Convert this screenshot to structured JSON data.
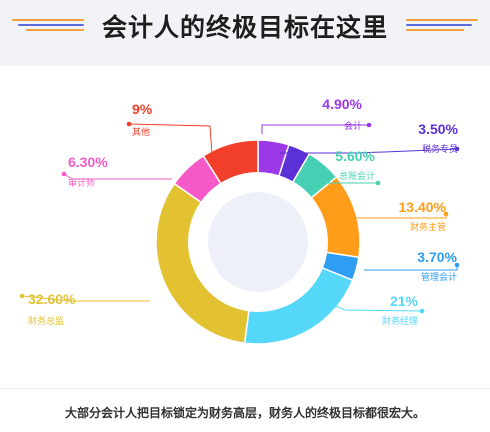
{
  "header": {
    "title": "会计人的终极目标在这里"
  },
  "chart_data": {
    "type": "pie",
    "donut": true,
    "title": "",
    "slices": [
      {
        "label": "会计",
        "value": 4.9,
        "display": "4.90%",
        "color": "#9b38e8"
      },
      {
        "label": "税务专员",
        "value": 3.5,
        "display": "3.50%",
        "color": "#5b30d6"
      },
      {
        "label": "总账会计",
        "value": 5.6,
        "display": "5.60%",
        "color": "#46cfb3"
      },
      {
        "label": "财务主管",
        "value": 13.4,
        "display": "13.40%",
        "color": "#ff9d1a"
      },
      {
        "label": "管理会计",
        "value": 3.7,
        "display": "3.70%",
        "color": "#2e9df2"
      },
      {
        "label": "财务经理",
        "value": 21,
        "display": "21%",
        "color": "#55d7fa"
      },
      {
        "label": "财务总监",
        "value": 32.6,
        "display": "32.60%",
        "color": "#e3c232"
      },
      {
        "label": "审计师",
        "value": 6.3,
        "display": "6.30%",
        "color": "#f55ac8"
      },
      {
        "label": "其他",
        "value": 9,
        "display": "9%",
        "color": "#f23f2b"
      }
    ]
  },
  "caption": "大部分会计人把目标锁定为财务高层，财务人的终极目标都很宏大。"
}
